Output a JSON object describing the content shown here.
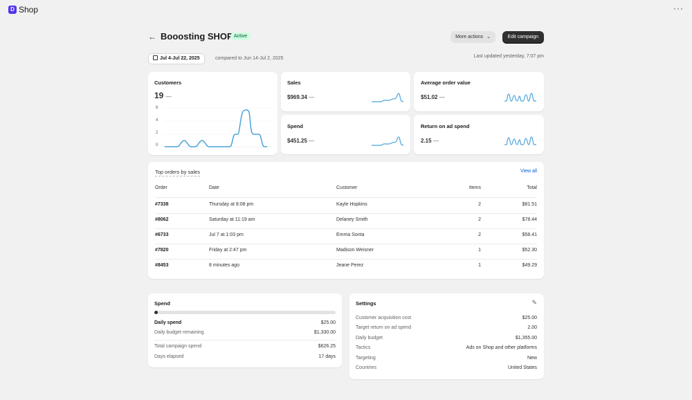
{
  "app": {
    "logo_letter": "D",
    "name": "Shop",
    "more_icon": "···"
  },
  "header": {
    "back_icon": "←",
    "title": "Booosting SHOP",
    "status": "Active",
    "more_actions": "More actions",
    "edit_campaign": "Edit campaign"
  },
  "date": {
    "range": "Jul 4-Jul 22, 2025",
    "compared": "compared to Jun 14-Jul 2, 2025",
    "updated": "Last updated yesterday, 7:07 pm"
  },
  "cards": {
    "customers": {
      "title": "Customers",
      "value": "19",
      "dash": "—",
      "y_ticks": [
        "6",
        "4",
        "2",
        "0"
      ]
    },
    "sales": {
      "title": "Sales",
      "value": "$969.34",
      "dash": "—"
    },
    "aov": {
      "title": "Average order value",
      "value": "$51.02",
      "dash": "—"
    },
    "spend": {
      "title": "Spend",
      "value": "$451.25",
      "dash": "—"
    },
    "roas": {
      "title": "Return on ad spend",
      "value": "2.15",
      "dash": "—"
    }
  },
  "orders": {
    "title": "Top orders by sales",
    "view_all": "View all",
    "columns": [
      "Order",
      "Date",
      "Customer",
      "Items",
      "Total"
    ],
    "rows": [
      {
        "order": "#7338",
        "date": "Thursday at 8:08 pm",
        "customer": "Kayle Hopkins",
        "items": "2",
        "total": "$81.51"
      },
      {
        "order": "#8062",
        "date": "Saturday at 11:19 am",
        "customer": "Delaney Smith",
        "items": "2",
        "total": "$78.44"
      },
      {
        "order": "#6733",
        "date": "Jul 7 at 1:03 pm",
        "customer": "Emma Sonta",
        "items": "2",
        "total": "$58.41"
      },
      {
        "order": "#7820",
        "date": "Friday at 2:47 pm",
        "customer": "Madison Weisner",
        "items": "1",
        "total": "$52.30"
      },
      {
        "order": "#8453",
        "date": "8 minutes ago",
        "customer": "Jeane Perez",
        "items": "1",
        "total": "$49.29"
      }
    ]
  },
  "spend_panel": {
    "title": "Spend",
    "progress": 0.01,
    "daily_spend_label": "Daily spend",
    "daily_spend": "$25.00",
    "remaining_label": "Daily budget remaining",
    "remaining": "$1,330.00",
    "total_label": "Total campaign spend",
    "total": "$626.25",
    "days_label": "Days elapsed",
    "days": "17 days"
  },
  "settings": {
    "title": "Settings",
    "edit_icon": "✎",
    "rows": [
      {
        "label": "Customer acquisition cost",
        "value": "$25.00"
      },
      {
        "label": "Target return on ad spend",
        "value": "2.00"
      },
      {
        "label": "Daily budget",
        "value": "$1,355.00"
      },
      {
        "label": "Tactics",
        "value": "Ads on Shop and other platforms"
      },
      {
        "label": "Targeting",
        "value": "New"
      },
      {
        "label": "Countries",
        "value": "United States"
      }
    ]
  },
  "colors": {
    "accent": "#5433eb",
    "chart_line": "#4ba3dc",
    "link": "#005bd3",
    "badge_bg": "#cdfee1"
  }
}
